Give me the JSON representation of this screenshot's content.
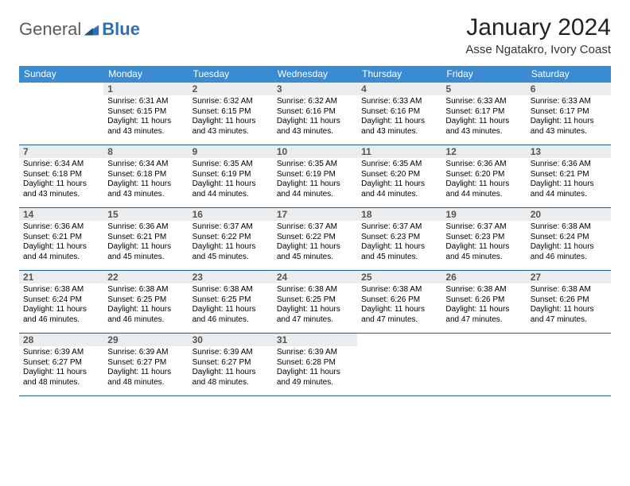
{
  "brand": {
    "part1": "General",
    "part2": "Blue"
  },
  "title": "January 2024",
  "location": "Asse Ngatakro, Ivory Coast",
  "colors": {
    "header_bg": "#3a8bd1",
    "header_text": "#ffffff",
    "daynum_bg": "#e9edf0",
    "border": "#1f5f99",
    "brand_gray": "#5b5b5b",
    "brand_blue": "#2f6fb4"
  },
  "dow": [
    "Sunday",
    "Monday",
    "Tuesday",
    "Wednesday",
    "Thursday",
    "Friday",
    "Saturday"
  ],
  "weeks": [
    [
      {
        "n": "",
        "sr": "",
        "ss": "",
        "dl": ""
      },
      {
        "n": "1",
        "sr": "Sunrise: 6:31 AM",
        "ss": "Sunset: 6:15 PM",
        "dl": "Daylight: 11 hours and 43 minutes."
      },
      {
        "n": "2",
        "sr": "Sunrise: 6:32 AM",
        "ss": "Sunset: 6:15 PM",
        "dl": "Daylight: 11 hours and 43 minutes."
      },
      {
        "n": "3",
        "sr": "Sunrise: 6:32 AM",
        "ss": "Sunset: 6:16 PM",
        "dl": "Daylight: 11 hours and 43 minutes."
      },
      {
        "n": "4",
        "sr": "Sunrise: 6:33 AM",
        "ss": "Sunset: 6:16 PM",
        "dl": "Daylight: 11 hours and 43 minutes."
      },
      {
        "n": "5",
        "sr": "Sunrise: 6:33 AM",
        "ss": "Sunset: 6:17 PM",
        "dl": "Daylight: 11 hours and 43 minutes."
      },
      {
        "n": "6",
        "sr": "Sunrise: 6:33 AM",
        "ss": "Sunset: 6:17 PM",
        "dl": "Daylight: 11 hours and 43 minutes."
      }
    ],
    [
      {
        "n": "7",
        "sr": "Sunrise: 6:34 AM",
        "ss": "Sunset: 6:18 PM",
        "dl": "Daylight: 11 hours and 43 minutes."
      },
      {
        "n": "8",
        "sr": "Sunrise: 6:34 AM",
        "ss": "Sunset: 6:18 PM",
        "dl": "Daylight: 11 hours and 43 minutes."
      },
      {
        "n": "9",
        "sr": "Sunrise: 6:35 AM",
        "ss": "Sunset: 6:19 PM",
        "dl": "Daylight: 11 hours and 44 minutes."
      },
      {
        "n": "10",
        "sr": "Sunrise: 6:35 AM",
        "ss": "Sunset: 6:19 PM",
        "dl": "Daylight: 11 hours and 44 minutes."
      },
      {
        "n": "11",
        "sr": "Sunrise: 6:35 AM",
        "ss": "Sunset: 6:20 PM",
        "dl": "Daylight: 11 hours and 44 minutes."
      },
      {
        "n": "12",
        "sr": "Sunrise: 6:36 AM",
        "ss": "Sunset: 6:20 PM",
        "dl": "Daylight: 11 hours and 44 minutes."
      },
      {
        "n": "13",
        "sr": "Sunrise: 6:36 AM",
        "ss": "Sunset: 6:21 PM",
        "dl": "Daylight: 11 hours and 44 minutes."
      }
    ],
    [
      {
        "n": "14",
        "sr": "Sunrise: 6:36 AM",
        "ss": "Sunset: 6:21 PM",
        "dl": "Daylight: 11 hours and 44 minutes."
      },
      {
        "n": "15",
        "sr": "Sunrise: 6:36 AM",
        "ss": "Sunset: 6:21 PM",
        "dl": "Daylight: 11 hours and 45 minutes."
      },
      {
        "n": "16",
        "sr": "Sunrise: 6:37 AM",
        "ss": "Sunset: 6:22 PM",
        "dl": "Daylight: 11 hours and 45 minutes."
      },
      {
        "n": "17",
        "sr": "Sunrise: 6:37 AM",
        "ss": "Sunset: 6:22 PM",
        "dl": "Daylight: 11 hours and 45 minutes."
      },
      {
        "n": "18",
        "sr": "Sunrise: 6:37 AM",
        "ss": "Sunset: 6:23 PM",
        "dl": "Daylight: 11 hours and 45 minutes."
      },
      {
        "n": "19",
        "sr": "Sunrise: 6:37 AM",
        "ss": "Sunset: 6:23 PM",
        "dl": "Daylight: 11 hours and 45 minutes."
      },
      {
        "n": "20",
        "sr": "Sunrise: 6:38 AM",
        "ss": "Sunset: 6:24 PM",
        "dl": "Daylight: 11 hours and 46 minutes."
      }
    ],
    [
      {
        "n": "21",
        "sr": "Sunrise: 6:38 AM",
        "ss": "Sunset: 6:24 PM",
        "dl": "Daylight: 11 hours and 46 minutes."
      },
      {
        "n": "22",
        "sr": "Sunrise: 6:38 AM",
        "ss": "Sunset: 6:25 PM",
        "dl": "Daylight: 11 hours and 46 minutes."
      },
      {
        "n": "23",
        "sr": "Sunrise: 6:38 AM",
        "ss": "Sunset: 6:25 PM",
        "dl": "Daylight: 11 hours and 46 minutes."
      },
      {
        "n": "24",
        "sr": "Sunrise: 6:38 AM",
        "ss": "Sunset: 6:25 PM",
        "dl": "Daylight: 11 hours and 47 minutes."
      },
      {
        "n": "25",
        "sr": "Sunrise: 6:38 AM",
        "ss": "Sunset: 6:26 PM",
        "dl": "Daylight: 11 hours and 47 minutes."
      },
      {
        "n": "26",
        "sr": "Sunrise: 6:38 AM",
        "ss": "Sunset: 6:26 PM",
        "dl": "Daylight: 11 hours and 47 minutes."
      },
      {
        "n": "27",
        "sr": "Sunrise: 6:38 AM",
        "ss": "Sunset: 6:26 PM",
        "dl": "Daylight: 11 hours and 47 minutes."
      }
    ],
    [
      {
        "n": "28",
        "sr": "Sunrise: 6:39 AM",
        "ss": "Sunset: 6:27 PM",
        "dl": "Daylight: 11 hours and 48 minutes."
      },
      {
        "n": "29",
        "sr": "Sunrise: 6:39 AM",
        "ss": "Sunset: 6:27 PM",
        "dl": "Daylight: 11 hours and 48 minutes."
      },
      {
        "n": "30",
        "sr": "Sunrise: 6:39 AM",
        "ss": "Sunset: 6:27 PM",
        "dl": "Daylight: 11 hours and 48 minutes."
      },
      {
        "n": "31",
        "sr": "Sunrise: 6:39 AM",
        "ss": "Sunset: 6:28 PM",
        "dl": "Daylight: 11 hours and 49 minutes."
      },
      {
        "n": "",
        "sr": "",
        "ss": "",
        "dl": ""
      },
      {
        "n": "",
        "sr": "",
        "ss": "",
        "dl": ""
      },
      {
        "n": "",
        "sr": "",
        "ss": "",
        "dl": ""
      }
    ]
  ]
}
